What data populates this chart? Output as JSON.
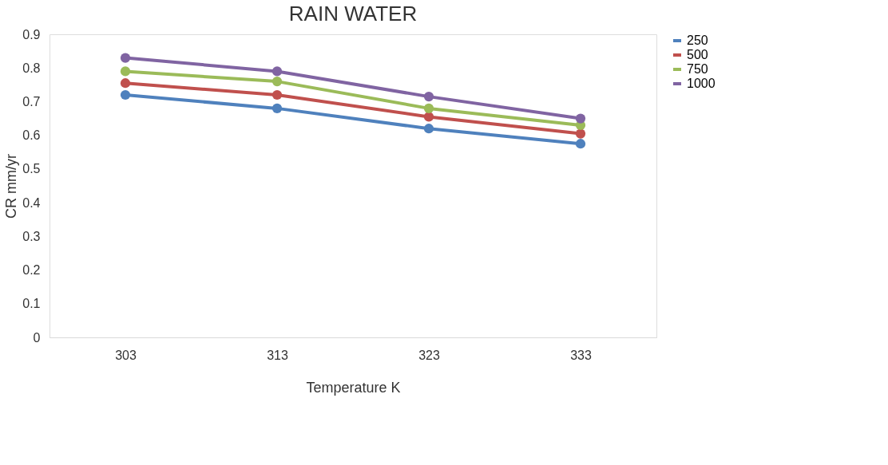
{
  "chart_data": {
    "type": "line",
    "title": "RAIN WATER",
    "xlabel": "Temperature K",
    "ylabel": "CR mm/yr",
    "categories": [
      "303",
      "313",
      "323",
      "333"
    ],
    "series": [
      {
        "name": "250",
        "color": "#4f81bd",
        "values": [
          0.72,
          0.68,
          0.62,
          0.575
        ]
      },
      {
        "name": "500",
        "color": "#c0504d",
        "values": [
          0.755,
          0.72,
          0.655,
          0.605
        ]
      },
      {
        "name": "750",
        "color": "#9bbb59",
        "values": [
          0.79,
          0.76,
          0.68,
          0.63
        ]
      },
      {
        "name": "1000",
        "color": "#8064a2",
        "values": [
          0.83,
          0.79,
          0.715,
          0.65
        ]
      }
    ],
    "ylim": [
      0,
      0.9
    ],
    "yticks": [
      0,
      0.1,
      0.2,
      0.3,
      0.4,
      0.5,
      0.6,
      0.7,
      0.8,
      0.9
    ],
    "grid": false,
    "legend": "right",
    "marker": "circle",
    "line_style": "solid"
  }
}
